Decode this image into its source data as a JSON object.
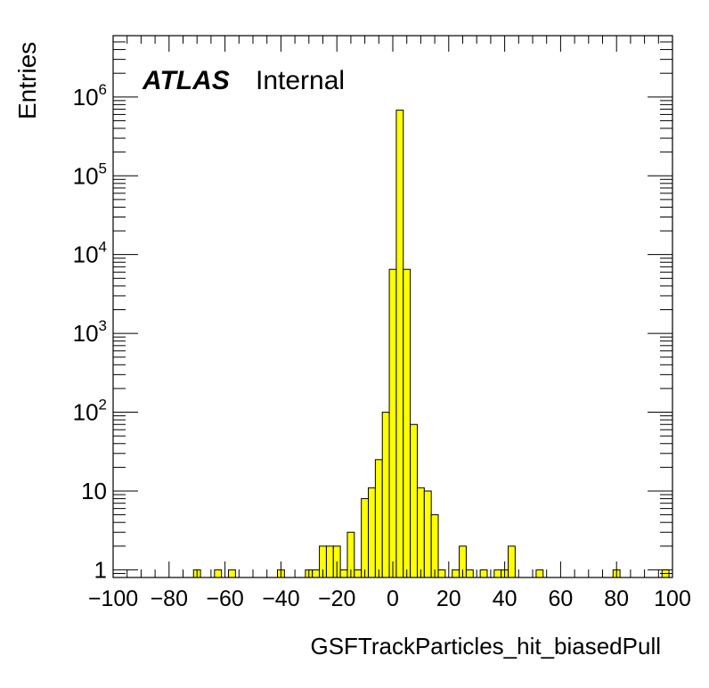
{
  "chart_data": {
    "type": "histogram",
    "xlabel": "GSFTrackParticles_hit_biasedPull",
    "ylabel": "Entries",
    "xlim": [
      -100,
      100
    ],
    "ylim": [
      0.8,
      6000000
    ],
    "log_y": true,
    "bin_width": 2.5,
    "fill_color": "#ffff00",
    "line_color": "#000000",
    "x_ticks": [
      "−100",
      "−80",
      "−60",
      "−40",
      "−20",
      "0",
      "20",
      "40",
      "60",
      "80",
      "100"
    ],
    "x_tick_values": [
      -100,
      -80,
      -60,
      -40,
      -20,
      0,
      20,
      40,
      60,
      80,
      100
    ],
    "y_ticks": [
      {
        "value": 1,
        "base": "1",
        "exp": ""
      },
      {
        "value": 10,
        "base": "10",
        "exp": ""
      },
      {
        "value": 100,
        "base": "10",
        "exp": "2"
      },
      {
        "value": 1000,
        "base": "10",
        "exp": "3"
      },
      {
        "value": 10000,
        "base": "10",
        "exp": "4"
      },
      {
        "value": 100000,
        "base": "10",
        "exp": "5"
      },
      {
        "value": 1000000,
        "base": "10",
        "exp": "6"
      }
    ],
    "bins": [
      {
        "x": -70,
        "y": 1
      },
      {
        "x": -62.5,
        "y": 1
      },
      {
        "x": -57.5,
        "y": 1
      },
      {
        "x": -40,
        "y": 1
      },
      {
        "x": -30,
        "y": 1
      },
      {
        "x": -27.5,
        "y": 1
      },
      {
        "x": -25,
        "y": 2
      },
      {
        "x": -22.5,
        "y": 2
      },
      {
        "x": -20,
        "y": 2
      },
      {
        "x": -17.5,
        "y": 1
      },
      {
        "x": -15,
        "y": 3
      },
      {
        "x": -12.5,
        "y": 1
      },
      {
        "x": -10,
        "y": 8
      },
      {
        "x": -7.5,
        "y": 11
      },
      {
        "x": -5,
        "y": 25
      },
      {
        "x": -2.5,
        "y": 100
      },
      {
        "x": 0,
        "y": 6500
      },
      {
        "x": 2.5,
        "y": 680000
      },
      {
        "x": 5,
        "y": 6500
      },
      {
        "x": 7.5,
        "y": 70
      },
      {
        "x": 10,
        "y": 11
      },
      {
        "x": 12.5,
        "y": 10
      },
      {
        "x": 15,
        "y": 5
      },
      {
        "x": 17.5,
        "y": 1
      },
      {
        "x": 22.5,
        "y": 1
      },
      {
        "x": 25,
        "y": 2
      },
      {
        "x": 27.5,
        "y": 1
      },
      {
        "x": 32.5,
        "y": 1
      },
      {
        "x": 37.5,
        "y": 1
      },
      {
        "x": 40,
        "y": 1
      },
      {
        "x": 42.5,
        "y": 2
      },
      {
        "x": 52.5,
        "y": 1
      },
      {
        "x": 80,
        "y": 1
      },
      {
        "x": 97.5,
        "y": 1
      }
    ],
    "annotations": {
      "experiment": "ATLAS",
      "status": "Internal"
    }
  }
}
